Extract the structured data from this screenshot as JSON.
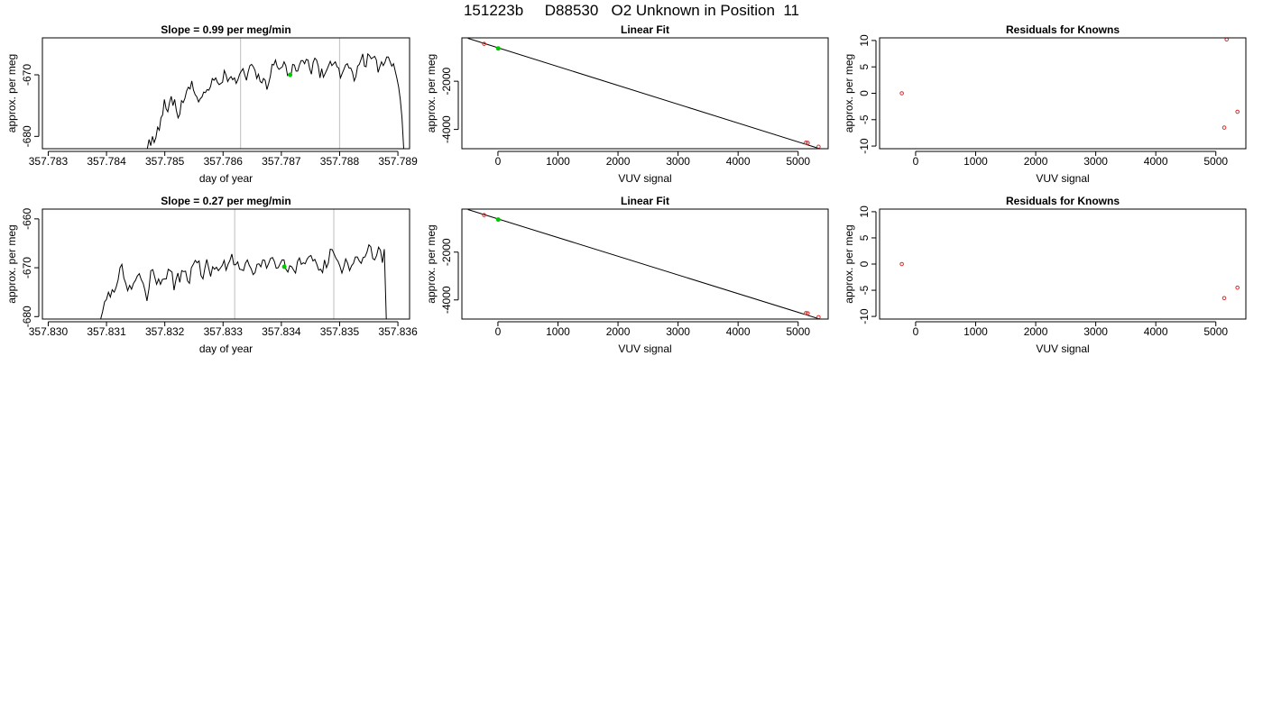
{
  "page": {
    "title": "151223b     D88530   O2 Unknown in Position  11"
  },
  "chart_data": [
    {
      "id": "p1",
      "type": "line",
      "title": "Slope =  0.99  per meg/min",
      "xlabel": "day of year",
      "ylabel": "approx. per meg",
      "xlim": [
        357.7829,
        357.7892
      ],
      "ylim": [
        -682,
        -664
      ],
      "xticks": [
        357.783,
        357.784,
        357.785,
        357.786,
        357.787,
        357.788,
        357.789
      ],
      "xtick_labels": [
        "357.783",
        "357.784",
        "357.785",
        "357.786",
        "357.787",
        "357.788",
        "357.789"
      ],
      "yticks": [
        -680,
        -670
      ],
      "ytick_labels": [
        "-680",
        "-670"
      ],
      "vlines": [
        357.7863,
        357.788
      ],
      "trace": {
        "x_start": 357.7847,
        "x_end": 357.7891,
        "y": [
          -682,
          -680.5,
          -681.5,
          -680,
          -681,
          -680.2,
          -678.5,
          -679,
          -677,
          -676.5,
          -674,
          -675.5,
          -676,
          -674.5,
          -673.5,
          -675,
          -674,
          -675.8,
          -677,
          -676.4,
          -674.2,
          -674.5,
          -673.8,
          -672.6,
          -672,
          -672.3,
          -671,
          -672.5,
          -673.2,
          -673.6,
          -674.4,
          -673.9,
          -673.6,
          -672.8,
          -672.9,
          -672.4,
          -672.5,
          -671.9,
          -670.6,
          -670.9,
          -670.5,
          -671.2,
          -671.6,
          -671.4,
          -671.2,
          -669.3,
          -670,
          -671.1,
          -670.6,
          -670.3,
          -670.8,
          -670.5,
          -671.4,
          -670.8,
          -669.9,
          -669.4,
          -669,
          -670,
          -670.9,
          -669.5,
          -668.5,
          -668.3,
          -668.7,
          -669.3,
          -670.6,
          -669.9,
          -671.1,
          -671.3,
          -670.6,
          -670.9,
          -672.4,
          -671.4,
          -670.2,
          -668.3,
          -668.4,
          -667.6,
          -668.7,
          -669.1,
          -668.9,
          -668.7,
          -667.9,
          -668.5,
          -670.1,
          -669.8,
          -670.2,
          -668.3,
          -668.4,
          -669.4,
          -669.4,
          -668.4,
          -667.7,
          -667.7,
          -668.2,
          -667.5,
          -667.6,
          -669,
          -669.9,
          -668,
          -667.3,
          -667.6,
          -668.6,
          -670.5,
          -669,
          -670.4,
          -669.8,
          -669.2,
          -668.5,
          -667.8,
          -668.5,
          -668.2,
          -667.9,
          -668.7,
          -668.9,
          -670.5,
          -669.8,
          -669.1,
          -668.4,
          -668.2,
          -668.9,
          -668.9,
          -669.6,
          -671,
          -670.3,
          -668.6,
          -668.3,
          -667.5,
          -666.6,
          -668.6,
          -668.7,
          -666.6,
          -666.9,
          -667.4,
          -667.2,
          -667,
          -667.6,
          -669.6,
          -668.7,
          -667.9,
          -668.5,
          -668,
          -667.1,
          -667.1,
          -667.9,
          -668.6,
          -668.2,
          -669.4,
          -670.6,
          -672,
          -674,
          -677,
          -682
        ]
      },
      "points": [
        {
          "x": 357.78715,
          "y": -670.0,
          "color": "#00c800",
          "symbol": "filled"
        }
      ]
    },
    {
      "id": "p2",
      "type": "scatter",
      "title": "Linear Fit",
      "xlabel": "VUV signal",
      "ylabel": "approx. per meg",
      "xlim": [
        -600,
        5500
      ],
      "ylim": [
        -4800,
        -200
      ],
      "xticks": [
        0,
        1000,
        2000,
        3000,
        4000,
        5000
      ],
      "xtick_labels": [
        "0",
        "1000",
        "2000",
        "3000",
        "4000",
        "5000"
      ],
      "yticks": [
        -4000,
        -2000
      ],
      "ytick_labels": [
        "-4000",
        "-2000"
      ],
      "fit_line": [
        [
          -500,
          -220
        ],
        [
          5360,
          -4800
        ]
      ],
      "points": [
        {
          "x": -230,
          "y": -450,
          "color": "#d03030",
          "symbol": "open"
        },
        {
          "x": 5130,
          "y": -4550,
          "color": "#d03030",
          "symbol": "open"
        },
        {
          "x": 5160,
          "y": -4560,
          "color": "#d03030",
          "symbol": "open"
        },
        {
          "x": 5340,
          "y": -4720,
          "color": "#d03030",
          "symbol": "open"
        },
        {
          "x": 5,
          "y": -640,
          "color": "#00c800",
          "symbol": "filled"
        }
      ]
    },
    {
      "id": "p3",
      "type": "scatter",
      "title": "Residuals for Knowns",
      "xlabel": "VUV signal",
      "ylabel": "approx. per meg",
      "xlim": [
        -600,
        5500
      ],
      "ylim": [
        -10.5,
        10.5
      ],
      "xticks": [
        0,
        1000,
        2000,
        3000,
        4000,
        5000
      ],
      "xtick_labels": [
        "0",
        "1000",
        "2000",
        "3000",
        "4000",
        "5000"
      ],
      "yticks": [
        -10,
        -5,
        0,
        5,
        10
      ],
      "ytick_labels": [
        "-10",
        "-5",
        "0",
        "5",
        "10"
      ],
      "points": [
        {
          "x": -230,
          "y": 0,
          "color": "#d03030",
          "symbol": "open"
        },
        {
          "x": 5180,
          "y": 10.2,
          "color": "#d03030",
          "symbol": "open"
        },
        {
          "x": 5140,
          "y": -6.5,
          "color": "#d03030",
          "symbol": "open"
        },
        {
          "x": 5360,
          "y": -3.5,
          "color": "#d03030",
          "symbol": "open"
        }
      ]
    },
    {
      "id": "p4",
      "type": "line",
      "title": "Slope =  0.27  per meg/min",
      "xlabel": "day of year",
      "ylabel": "approx. per meg",
      "xlim": [
        357.8299,
        357.8362
      ],
      "ylim": [
        -680.5,
        -658
      ],
      "xticks": [
        357.83,
        357.831,
        357.832,
        357.833,
        357.834,
        357.835,
        357.836
      ],
      "xtick_labels": [
        "357.830",
        "357.831",
        "357.832",
        "357.833",
        "357.834",
        "357.835",
        "357.836"
      ],
      "yticks": [
        -680,
        -670,
        -660
      ],
      "ytick_labels": [
        "-680",
        "-670",
        "-660"
      ],
      "vlines": [
        357.8332,
        357.8349
      ],
      "trace": {
        "x_start": 357.8309,
        "x_end": 357.8358,
        "y": [
          -680.5,
          -679,
          -677,
          -676.5,
          -675,
          -676,
          -674.5,
          -675,
          -674,
          -672.5,
          -670,
          -669.3,
          -672.1,
          -673.2,
          -674.7,
          -673.6,
          -674.4,
          -673.2,
          -672.6,
          -671.7,
          -671.2,
          -672.4,
          -673.2,
          -674.7,
          -676.8,
          -674.3,
          -670.6,
          -670.4,
          -671.9,
          -673.4,
          -672.3,
          -673.4,
          -672.4,
          -672.3,
          -672.3,
          -670.3,
          -670.6,
          -670.9,
          -674.6,
          -672.5,
          -671.1,
          -673,
          -670.6,
          -670.8,
          -670.7,
          -672.7,
          -673.2,
          -670,
          -669.3,
          -668.5,
          -669,
          -668.6,
          -671.6,
          -672.3,
          -670.1,
          -668.3,
          -670.1,
          -671.8,
          -669.8,
          -670.3,
          -669.9,
          -670.6,
          -670.1,
          -669.5,
          -668.5,
          -670.5,
          -669.3,
          -668.5,
          -667.2,
          -669.4,
          -669.4,
          -668.8,
          -670.3,
          -670.4,
          -670.6,
          -669.1,
          -668.4,
          -669.5,
          -670.2,
          -671.4,
          -671,
          -669.3,
          -669.2,
          -669.8,
          -668.4,
          -668.5,
          -670.1,
          -669.2,
          -668.1,
          -667.9,
          -668.7,
          -670.1,
          -670,
          -669.2,
          -668.4,
          -668.4,
          -670.3,
          -670.9,
          -669.6,
          -669.8,
          -670.5,
          -671.1,
          -668.7,
          -668,
          -669.3,
          -669,
          -669.2,
          -668.2,
          -667.7,
          -667.5,
          -668.6,
          -668.3,
          -669.3,
          -670.5,
          -670.3,
          -671,
          -668.4,
          -670,
          -669,
          -666.2,
          -666.3,
          -667.2,
          -668.1,
          -668.7,
          -669.7,
          -671.1,
          -669.8,
          -668.2,
          -669.1,
          -670.6,
          -669.6,
          -669.1,
          -667.8,
          -667.8,
          -668.6,
          -669.1,
          -667.9,
          -667.8,
          -666.8,
          -665.3,
          -665.7,
          -668.1,
          -668.4,
          -667.5,
          -665.8,
          -666.4,
          -669,
          -666.2,
          -680.5
        ]
      },
      "points": [
        {
          "x": 357.83405,
          "y": -669.8,
          "color": "#00c800",
          "symbol": "filled"
        }
      ]
    },
    {
      "id": "p5",
      "type": "scatter",
      "title": "Linear Fit",
      "xlabel": "VUV signal",
      "ylabel": "approx. per meg",
      "xlim": [
        -600,
        5500
      ],
      "ylim": [
        -4800,
        -200
      ],
      "xticks": [
        0,
        1000,
        2000,
        3000,
        4000,
        5000
      ],
      "xtick_labels": [
        "0",
        "1000",
        "2000",
        "3000",
        "4000",
        "5000"
      ],
      "yticks": [
        -4000,
        -2000
      ],
      "ytick_labels": [
        "-4000",
        "-2000"
      ],
      "fit_line": [
        [
          -500,
          -220
        ],
        [
          5360,
          -4800
        ]
      ],
      "points": [
        {
          "x": -230,
          "y": -450,
          "color": "#d03030",
          "symbol": "open"
        },
        {
          "x": 5130,
          "y": -4550,
          "color": "#d03030",
          "symbol": "open"
        },
        {
          "x": 5160,
          "y": -4560,
          "color": "#d03030",
          "symbol": "open"
        },
        {
          "x": 5340,
          "y": -4720,
          "color": "#d03030",
          "symbol": "open"
        },
        {
          "x": 5,
          "y": -640,
          "color": "#00c800",
          "symbol": "filled"
        }
      ]
    },
    {
      "id": "p6",
      "type": "scatter",
      "title": "Residuals for Knowns",
      "xlabel": "VUV signal",
      "ylabel": "approx. per meg",
      "xlim": [
        -600,
        5500
      ],
      "ylim": [
        -10.5,
        10.5
      ],
      "xticks": [
        0,
        1000,
        2000,
        3000,
        4000,
        5000
      ],
      "xtick_labels": [
        "0",
        "1000",
        "2000",
        "3000",
        "4000",
        "5000"
      ],
      "yticks": [
        -10,
        -5,
        0,
        5,
        10
      ],
      "ytick_labels": [
        "-10",
        "-5",
        "0",
        "5",
        "10"
      ],
      "points": [
        {
          "x": -230,
          "y": 0,
          "color": "#d03030",
          "symbol": "open"
        },
        {
          "x": 5140,
          "y": -6.5,
          "color": "#d03030",
          "symbol": "open"
        },
        {
          "x": 5360,
          "y": -4.5,
          "color": "#d03030",
          "symbol": "open"
        }
      ]
    }
  ]
}
